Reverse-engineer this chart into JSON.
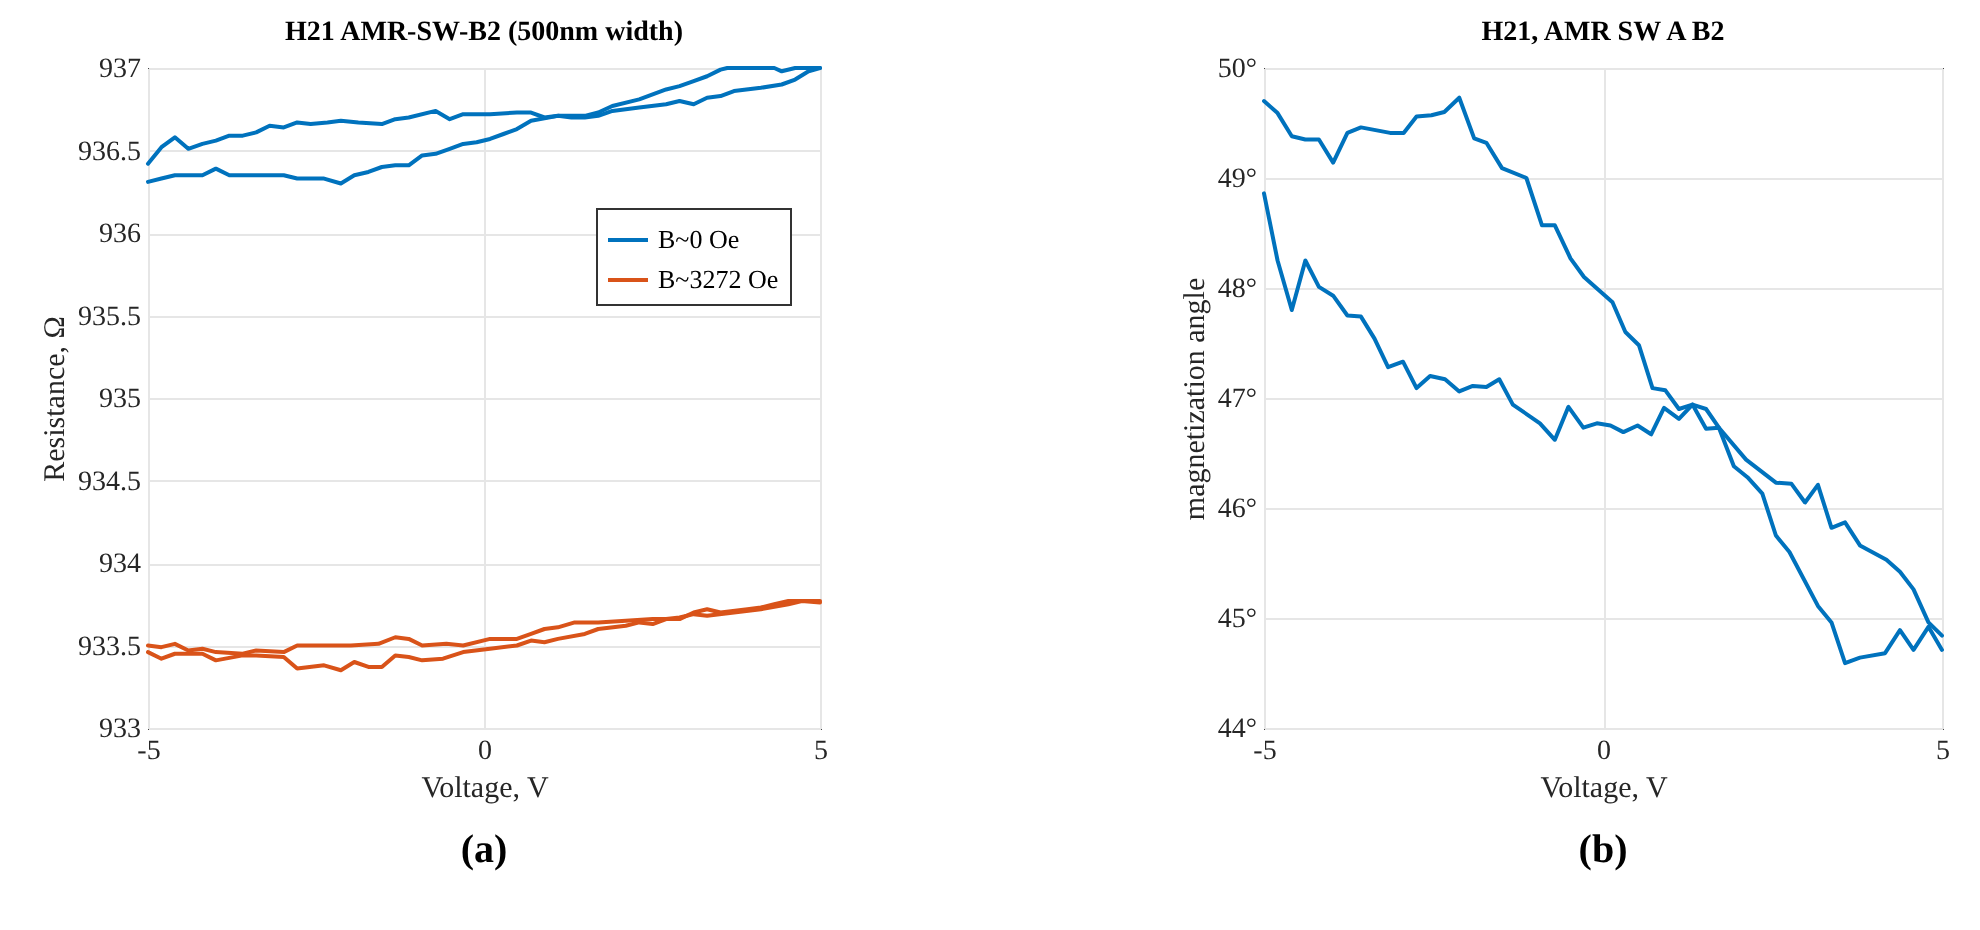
{
  "chart_data": [
    {
      "type": "line",
      "title": "H21 AMR-SW-B2 (500nm width)",
      "xlabel": "Voltage, V",
      "ylabel": "Resistance, Ω",
      "xlim": [
        -5,
        5
      ],
      "xticks": [
        -5,
        0,
        5
      ],
      "ylim": [
        933,
        937
      ],
      "yticks": [
        933,
        933.5,
        934,
        934.5,
        935,
        935.5,
        936,
        936.5,
        937
      ],
      "grid": true,
      "legend": "top right",
      "annotations": [
        "(a)"
      ],
      "series": [
        {
          "name": "B~0 Oe",
          "color": "#0072bd",
          "x": [
            -5.0,
            -4.8,
            -4.6,
            -4.4,
            -4.19,
            -3.99,
            -3.79,
            -3.59,
            -3.39,
            -3.19,
            -2.98,
            -2.78,
            -2.58,
            -2.33,
            -2.13,
            -1.87,
            -1.52,
            -1.32,
            -1.12,
            -0.72,
            -0.51,
            -0.31,
            0.09,
            0.49,
            0.7,
            0.9,
            1.1,
            1.3,
            1.5,
            1.7,
            1.91,
            2.31,
            2.71,
            2.91,
            3.12,
            3.32,
            3.52,
            3.72,
            4.12,
            4.43,
            4.63,
            4.83,
            5.0
          ],
          "values": [
            936.42,
            936.52,
            936.58,
            936.51,
            936.54,
            936.56,
            936.59,
            936.59,
            936.61,
            936.65,
            936.64,
            936.67,
            936.66,
            936.67,
            936.68,
            936.67,
            936.66,
            936.69,
            936.7,
            936.74,
            936.69,
            936.72,
            936.72,
            936.73,
            936.73,
            936.7,
            936.71,
            936.7,
            936.7,
            936.71,
            936.74,
            936.76,
            936.78,
            936.8,
            936.78,
            936.82,
            936.83,
            936.86,
            936.88,
            936.9,
            936.93,
            936.98,
            937.0
          ]
        },
        {
          "color": "#0072bd",
          "x": [
            5.0,
            4.63,
            4.43,
            4.32,
            3.92,
            3.62,
            3.52,
            3.32,
            3.12,
            2.91,
            2.71,
            2.31,
            1.91,
            1.7,
            1.5,
            1.1,
            0.7,
            0.49,
            0.29,
            0.09,
            -0.11,
            -0.31,
            -0.51,
            -0.72,
            -0.92,
            -1.12,
            -1.32,
            -1.52,
            -1.72,
            -1.93,
            -2.13,
            -2.38,
            -2.78,
            -2.98,
            -3.39,
            -3.79,
            -3.99,
            -4.19,
            -4.6,
            -4.8,
            -5.0
          ],
          "values": [
            937.0,
            937.0,
            936.98,
            937.0,
            937.0,
            937.0,
            936.99,
            936.95,
            936.92,
            936.89,
            936.87,
            936.81,
            936.77,
            936.73,
            936.71,
            936.71,
            936.68,
            936.63,
            936.6,
            936.57,
            936.55,
            936.54,
            936.51,
            936.48,
            936.47,
            936.41,
            936.41,
            936.4,
            936.37,
            936.35,
            936.3,
            936.33,
            936.33,
            936.35,
            936.35,
            936.35,
            936.39,
            936.35,
            936.35,
            936.33,
            936.31
          ]
        },
        {
          "name": "B~3272 Oe",
          "color": "#d95319",
          "x": [
            -5.0,
            -4.8,
            -4.6,
            -4.4,
            -4.19,
            -3.99,
            -3.59,
            -3.39,
            -2.98,
            -2.78,
            -2.38,
            -1.98,
            -1.57,
            -1.32,
            -1.12,
            -0.92,
            -0.56,
            -0.31,
            0.09,
            0.49,
            0.7,
            0.9,
            1.1,
            1.35,
            1.7,
            2.11,
            2.51,
            2.91,
            3.12,
            3.32,
            3.52,
            3.92,
            4.12,
            4.32,
            4.53,
            4.73,
            5.0
          ],
          "values": [
            933.5,
            933.49,
            933.51,
            933.47,
            933.48,
            933.46,
            933.45,
            933.47,
            933.46,
            933.5,
            933.5,
            933.5,
            933.51,
            933.55,
            933.54,
            933.5,
            933.51,
            933.5,
            933.54,
            933.54,
            933.57,
            933.6,
            933.61,
            933.64,
            933.64,
            933.65,
            933.66,
            933.66,
            933.7,
            933.72,
            933.7,
            933.72,
            933.73,
            933.75,
            933.77,
            933.77,
            933.77
          ]
        },
        {
          "color": "#d95319",
          "x": [
            5.0,
            4.73,
            4.53,
            4.12,
            3.72,
            3.32,
            3.12,
            2.91,
            2.71,
            2.51,
            2.31,
            2.11,
            1.7,
            1.5,
            1.1,
            0.9,
            0.7,
            0.49,
            0.09,
            -0.31,
            -0.61,
            -0.92,
            -1.12,
            -1.32,
            -1.52,
            -1.72,
            -1.93,
            -2.13,
            -2.38,
            -2.78,
            -2.98,
            -3.39,
            -3.59,
            -3.99,
            -4.19,
            -4.6,
            -4.8,
            -5.0
          ],
          "values": [
            933.76,
            933.77,
            933.75,
            933.72,
            933.7,
            933.68,
            933.69,
            933.67,
            933.66,
            933.63,
            933.64,
            933.62,
            933.6,
            933.57,
            933.54,
            933.52,
            933.53,
            933.5,
            933.48,
            933.46,
            933.42,
            933.41,
            933.43,
            933.44,
            933.37,
            933.37,
            933.4,
            933.35,
            933.38,
            933.36,
            933.43,
            933.44,
            933.44,
            933.41,
            933.45,
            933.45,
            933.42,
            933.46
          ]
        }
      ]
    },
    {
      "type": "line",
      "title": "H21, AMR SW A B2",
      "xlabel": "Voltage, V",
      "ylabel": "magnetization angle",
      "xlim": [
        -5,
        5
      ],
      "xticks": [
        -5,
        0,
        5
      ],
      "ylim": [
        44,
        50
      ],
      "yticks": [
        {
          "value": 44,
          "label": "44°"
        },
        {
          "value": 45,
          "label": "45°"
        },
        {
          "value": 46,
          "label": "46°"
        },
        {
          "value": 47,
          "label": "47°"
        },
        {
          "value": 48,
          "label": "48°"
        },
        {
          "value": 49,
          "label": "49°"
        },
        {
          "value": 50,
          "label": "50°"
        }
      ],
      "grid": true,
      "annotations": [
        "(b)"
      ],
      "series": [
        {
          "color": "#0072bd",
          "x": [
            -5.0,
            -4.8,
            -4.59,
            -4.39,
            -4.19,
            -3.98,
            -3.77,
            -3.57,
            -3.14,
            -2.94,
            -2.75,
            -2.53,
            -2.34,
            -2.12,
            -1.9,
            -1.72,
            -1.49,
            -1.13,
            -0.9,
            -0.71,
            -0.48,
            -0.28,
            -0.06,
            0.14,
            0.33,
            0.53,
            0.73,
            0.92,
            1.12,
            1.32,
            1.52,
            1.71,
            1.93,
            2.13,
            2.35,
            2.55,
            2.75,
            3.17,
            3.37,
            3.57,
            3.79,
            4.16,
            4.38,
            4.58,
            4.8,
            5.0
          ],
          "values": [
            49.7,
            49.59,
            49.38,
            49.35,
            49.35,
            49.14,
            49.41,
            49.46,
            49.41,
            49.41,
            49.56,
            49.57,
            49.6,
            49.73,
            49.36,
            49.32,
            49.09,
            49.0,
            48.57,
            48.57,
            48.27,
            48.1,
            47.98,
            47.87,
            47.6,
            47.48,
            47.09,
            47.07,
            46.9,
            46.94,
            46.9,
            46.73,
            46.38,
            46.28,
            46.13,
            45.75,
            45.6,
            45.11,
            44.96,
            44.59,
            44.64,
            44.68,
            44.89,
            44.71,
            44.92,
            44.71
          ]
        },
        {
          "color": "#0072bd",
          "x": [
            5.0,
            4.8,
            4.58,
            4.38,
            4.18,
            3.79,
            3.57,
            3.37,
            3.17,
            2.98,
            2.78,
            2.55,
            2.11,
            1.71,
            1.52,
            1.32,
            1.12,
            0.9,
            0.71,
            0.51,
            0.3,
            0.11,
            -0.09,
            -0.29,
            -0.51,
            -0.71,
            -0.93,
            -1.33,
            -1.53,
            -1.72,
            -1.92,
            -2.12,
            -2.33,
            -2.55,
            -2.75,
            -2.95,
            -3.17,
            -3.37,
            -3.57,
            -3.77,
            -3.98,
            -4.19,
            -4.39,
            -4.59,
            -4.8,
            -5.0
          ],
          "values": [
            44.84,
            44.96,
            45.26,
            45.42,
            45.53,
            45.66,
            45.87,
            45.82,
            46.21,
            46.05,
            46.22,
            46.23,
            46.44,
            46.73,
            46.72,
            46.94,
            46.81,
            46.91,
            46.67,
            46.75,
            46.69,
            46.75,
            46.77,
            46.73,
            46.92,
            46.62,
            46.77,
            46.94,
            47.17,
            47.1,
            47.11,
            47.06,
            47.17,
            47.2,
            47.09,
            47.33,
            47.28,
            47.54,
            47.74,
            47.75,
            47.93,
            48.01,
            48.25,
            47.8,
            48.25,
            48.86
          ]
        }
      ]
    }
  ]
}
